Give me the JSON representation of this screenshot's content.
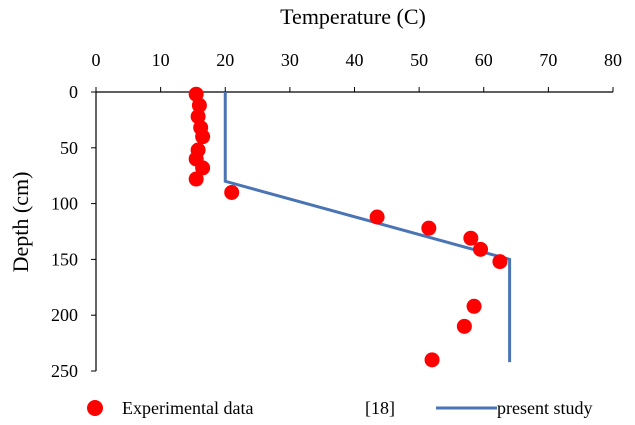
{
  "chart_data": {
    "type": "scatter",
    "title": "",
    "xlabel": "Temperature (C)",
    "ylabel": "Depth (cm)",
    "xlim": [
      0,
      80
    ],
    "ylim": [
      250,
      0
    ],
    "x_axis_position": "top",
    "y_axis_inverted": true,
    "x_ticks": [
      "0",
      "10",
      "20",
      "30",
      "40",
      "50",
      "60",
      "70",
      "80"
    ],
    "y_ticks": [
      "0",
      "50",
      "100",
      "150",
      "200",
      "250"
    ],
    "grid": false,
    "legend_position": "bottom",
    "series": [
      {
        "name": "Experimental data",
        "kind": "scatter",
        "color": "#ff0000",
        "points": [
          {
            "x": 15.5,
            "y": 2
          },
          {
            "x": 16.0,
            "y": 12
          },
          {
            "x": 15.8,
            "y": 22
          },
          {
            "x": 16.2,
            "y": 32
          },
          {
            "x": 16.5,
            "y": 40
          },
          {
            "x": 15.8,
            "y": 52
          },
          {
            "x": 15.5,
            "y": 60
          },
          {
            "x": 16.5,
            "y": 68
          },
          {
            "x": 15.5,
            "y": 78
          },
          {
            "x": 21.0,
            "y": 90
          },
          {
            "x": 43.5,
            "y": 112
          },
          {
            "x": 51.5,
            "y": 122
          },
          {
            "x": 58.0,
            "y": 131
          },
          {
            "x": 59.5,
            "y": 141
          },
          {
            "x": 62.5,
            "y": 152
          },
          {
            "x": 58.5,
            "y": 192
          },
          {
            "x": 57.0,
            "y": 210
          },
          {
            "x": 52.0,
            "y": 240
          }
        ]
      },
      {
        "name": "present study",
        "kind": "line",
        "color": "#4a74b5",
        "points": [
          {
            "x": 20,
            "y": 0
          },
          {
            "x": 20,
            "y": 80
          },
          {
            "x": 64,
            "y": 150
          },
          {
            "x": 64,
            "y": 242
          }
        ]
      }
    ],
    "legend": {
      "items": [
        {
          "label": "Experimental data",
          "ref": "[18]",
          "kind": "scatter",
          "color": "#ff0000"
        },
        {
          "label": "present study",
          "kind": "line",
          "color": "#4a74b5"
        }
      ]
    }
  }
}
